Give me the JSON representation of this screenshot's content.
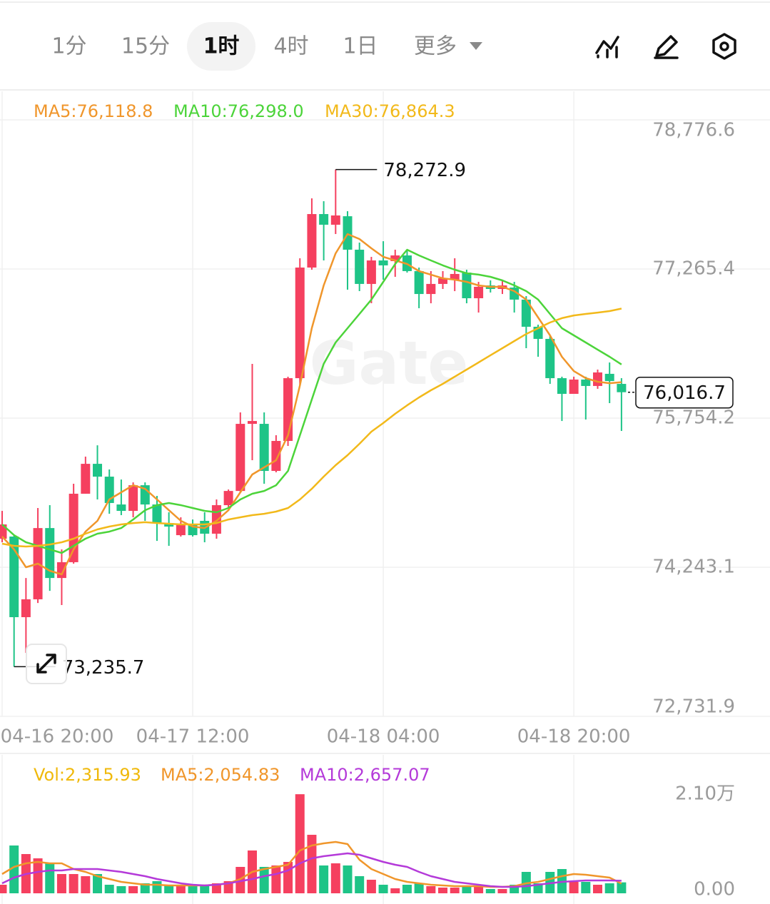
{
  "toolbar": {
    "tabs": [
      "1分",
      "15分",
      "1时",
      "4时",
      "1日",
      "更多"
    ],
    "active_tab": 2
  },
  "chart_data": [
    {
      "type": "candlestick",
      "watermark": "Gate",
      "categories": [
        "04-16 20:00",
        null,
        null,
        null,
        null,
        null,
        null,
        null,
        null,
        null,
        null,
        null,
        null,
        null,
        null,
        null,
        "04-17 12:00",
        null,
        null,
        null,
        null,
        null,
        null,
        null,
        null,
        null,
        null,
        null,
        null,
        null,
        null,
        null,
        "04-18 04:00",
        null,
        null,
        null,
        null,
        null,
        null,
        null,
        null,
        null,
        null,
        null,
        null,
        null,
        null,
        null,
        "04-18 20:00",
        null,
        null,
        null,
        null
      ],
      "open": [
        74532,
        74554,
        73737,
        73918,
        74640,
        74134,
        74294,
        74988,
        75291,
        75161,
        74879,
        74814,
        75074,
        74879,
        74691,
        74568,
        74677,
        74713,
        74583,
        74872,
        75016,
        75696,
        75696,
        75219,
        75523,
        76159,
        77280,
        77822,
        77714,
        77800,
        77461,
        77114,
        77352,
        77345,
        77403,
        77244,
        77012,
        77114,
        77157,
        77229,
        76969,
        77099,
        77063,
        77077,
        76955,
        76680,
        76557,
        76159,
        76000,
        76145,
        76080,
        76203,
        76101
      ],
      "high": [
        74814,
        74568,
        74134,
        74843,
        74872,
        74424,
        75089,
        75364,
        75479,
        75234,
        75132,
        75103,
        75103,
        74966,
        74800,
        74749,
        74727,
        74800,
        74930,
        75031,
        75812,
        76304,
        75812,
        75581,
        76174,
        77374,
        77981,
        77952,
        78272.9,
        77851,
        77533,
        77388,
        77547,
        77461,
        77461,
        77280,
        77244,
        77244,
        77374,
        77258,
        77135,
        77150,
        77157,
        77135,
        76991,
        76701,
        76593,
        76174,
        76174,
        76174,
        76246,
        76318,
        76159
      ],
      "low": [
        74496,
        73235.7,
        73375,
        73881,
        74004,
        73860,
        74279,
        74988,
        74930,
        74785,
        74771,
        74749,
        74713,
        74510,
        74460,
        74554,
        74554,
        74496,
        74532,
        74843,
        75002,
        75328,
        75089,
        75205,
        75472,
        76087,
        77258,
        77352,
        77620,
        77056,
        77041,
        76918,
        77157,
        77186,
        77229,
        76868,
        76918,
        77063,
        77041,
        76918,
        76824,
        77027,
        77012,
        76824,
        76463,
        76376,
        76101,
        75725,
        76000,
        75740,
        76051,
        75906,
        75624
      ],
      "close": [
        74677,
        73737,
        73918,
        74640,
        74134,
        74294,
        74988,
        75291,
        75161,
        74894,
        74814,
        75074,
        74879,
        74691,
        74655,
        74677,
        74568,
        74583,
        74872,
        75016,
        75696,
        75725,
        75219,
        75523,
        76159,
        77280,
        77822,
        77714,
        77808,
        77461,
        77114,
        77352,
        77302,
        77403,
        77244,
        77012,
        77114,
        77171,
        77215,
        76969,
        77085,
        77063,
        77099,
        76955,
        76680,
        76557,
        76159,
        76000,
        76145,
        76080,
        76217,
        76130,
        76016.7
      ],
      "up_color": "#f5405f",
      "down_color": "#1ec487",
      "series": [
        {
          "name": "MA5:76,118.8",
          "type": "line",
          "color": "#f0962b",
          "values": [
            74554,
            74424,
            74243,
            74279,
            74207,
            74171,
            74424,
            74604,
            74713,
            74930,
            75002,
            75074,
            75038,
            74930,
            74821,
            74713,
            74655,
            74640,
            74713,
            74821,
            75002,
            75183,
            75255,
            75328,
            75581,
            76087,
            76665,
            77099,
            77424,
            77620,
            77569,
            77475,
            77388,
            77352,
            77316,
            77244,
            77208,
            77171,
            77157,
            77135,
            77099,
            77085,
            77085,
            77041,
            76955,
            76774,
            76593,
            76376,
            76231,
            76159,
            76123,
            76108,
            76118.8
          ]
        },
        {
          "name": "MA10:76,298.0",
          "type": "line",
          "color": "#4cd43a",
          "values": [
            74677,
            74568,
            74496,
            74460,
            74424,
            74388,
            74460,
            74532,
            74583,
            74604,
            74640,
            74727,
            74821,
            74872,
            74894,
            74872,
            74843,
            74814,
            74800,
            74843,
            74930,
            74988,
            75016,
            75074,
            75219,
            75581,
            75942,
            76304,
            76521,
            76665,
            76810,
            76955,
            77135,
            77316,
            77461,
            77403,
            77352,
            77302,
            77258,
            77222,
            77208,
            77186,
            77150,
            77099,
            77041,
            76955,
            76810,
            76665,
            76593,
            76521,
            76448,
            76376,
            76298.0
          ]
        },
        {
          "name": "MA30:76,864.3",
          "type": "line",
          "color": "#f2b91a",
          "values": [
            74482,
            74460,
            74453,
            74460,
            74474,
            74496,
            74532,
            74583,
            74626,
            74655,
            74677,
            74691,
            74699,
            74691,
            74684,
            74677,
            74677,
            74677,
            74691,
            74727,
            74749,
            74771,
            74785,
            74807,
            74843,
            74930,
            75038,
            75161,
            75277,
            75378,
            75494,
            75617,
            75704,
            75798,
            75884,
            75964,
            76036,
            76101,
            76174,
            76246,
            76318,
            76391,
            76463,
            76535,
            76607,
            76665,
            76723,
            76767,
            76795,
            76810,
            76824,
            76839,
            76864.3
          ]
        }
      ],
      "ylim": [
        72731.9,
        78776.6
      ],
      "yticks": [
        {
          "value": 78776.6,
          "label": "78,776.6"
        },
        {
          "value": 77265.4,
          "label": "77,265.4"
        },
        {
          "value": 75754.2,
          "label": "75,754.2"
        },
        {
          "value": 74243.1,
          "label": "74,243.1"
        },
        {
          "value": 72731.9,
          "label": "72,731.9"
        }
      ],
      "grid": true,
      "annotations": [
        {
          "value": 78272.9,
          "label": "78,272.9",
          "kind": "high"
        },
        {
          "value": 73235.7,
          "label": "73,235.7",
          "kind": "low"
        }
      ],
      "last_price": {
        "value": 76016.7,
        "label": "76,016.7"
      }
    },
    {
      "type": "bar",
      "series": [
        {
          "name": "Vol:2,315.93",
          "type": "bar",
          "color": "#f0b90b",
          "values": [
            1813,
            10122,
            8309,
            7403,
            6345,
            4079,
            4079,
            3626,
            4079,
            1813,
            1511,
            1511,
            2115,
            2568,
            1813,
            1511,
            1511,
            1813,
            2115,
            2568,
            5590,
            9065,
            5590,
            5892,
            6648,
            20980,
            12389,
            5892,
            6345,
            5892,
            3626,
            2871,
            1813,
            1058,
            1813,
            2115,
            1511,
            1209,
            1209,
            1511,
            1511,
            906,
            906,
            1813,
            4532,
            2115,
            4532,
            5137,
            2417,
            2417,
            1813,
            2115,
            2315.93
          ]
        },
        {
          "name": "MA5:2,054.83",
          "type": "line",
          "color": "#f0962b",
          "values": [
            4079,
            5590,
            6345,
            6648,
            6345,
            6345,
            5137,
            4532,
            3626,
            3022,
            2417,
            2115,
            1813,
            1813,
            1662,
            1662,
            1662,
            1662,
            1813,
            2115,
            3022,
            4532,
            5137,
            5590,
            6043,
            9065,
            10122,
            10576,
            10878,
            10425,
            7101,
            5137,
            4079,
            3022,
            2417,
            2115,
            1813,
            1662,
            1511,
            1511,
            1511,
            1360,
            1360,
            1511,
            2115,
            2417,
            3022,
            3626,
            4079,
            3928,
            3626,
            3324,
            2054.83
          ]
        },
        {
          "name": "MA10:2,657.07",
          "type": "line",
          "color": "#b43ad9",
          "values": [
            2115,
            3324,
            4079,
            4532,
            4835,
            4835,
            5137,
            5137,
            5137,
            4835,
            4532,
            4079,
            3626,
            3022,
            2568,
            2115,
            1813,
            1662,
            1813,
            2115,
            2568,
            3022,
            3626,
            4079,
            4835,
            6345,
            7403,
            7856,
            8158,
            8460,
            8158,
            7403,
            6648,
            6043,
            5590,
            4532,
            3626,
            3022,
            2417,
            2115,
            1813,
            1511,
            1360,
            1360,
            1511,
            1813,
            2115,
            2417,
            2568,
            2719,
            2719,
            2719,
            2657.07
          ]
        }
      ],
      "ylim": [
        0,
        21000
      ],
      "yticks": [
        {
          "value": 21000,
          "label": "2.10万"
        },
        {
          "value": 0,
          "label": "0.00"
        }
      ]
    }
  ]
}
